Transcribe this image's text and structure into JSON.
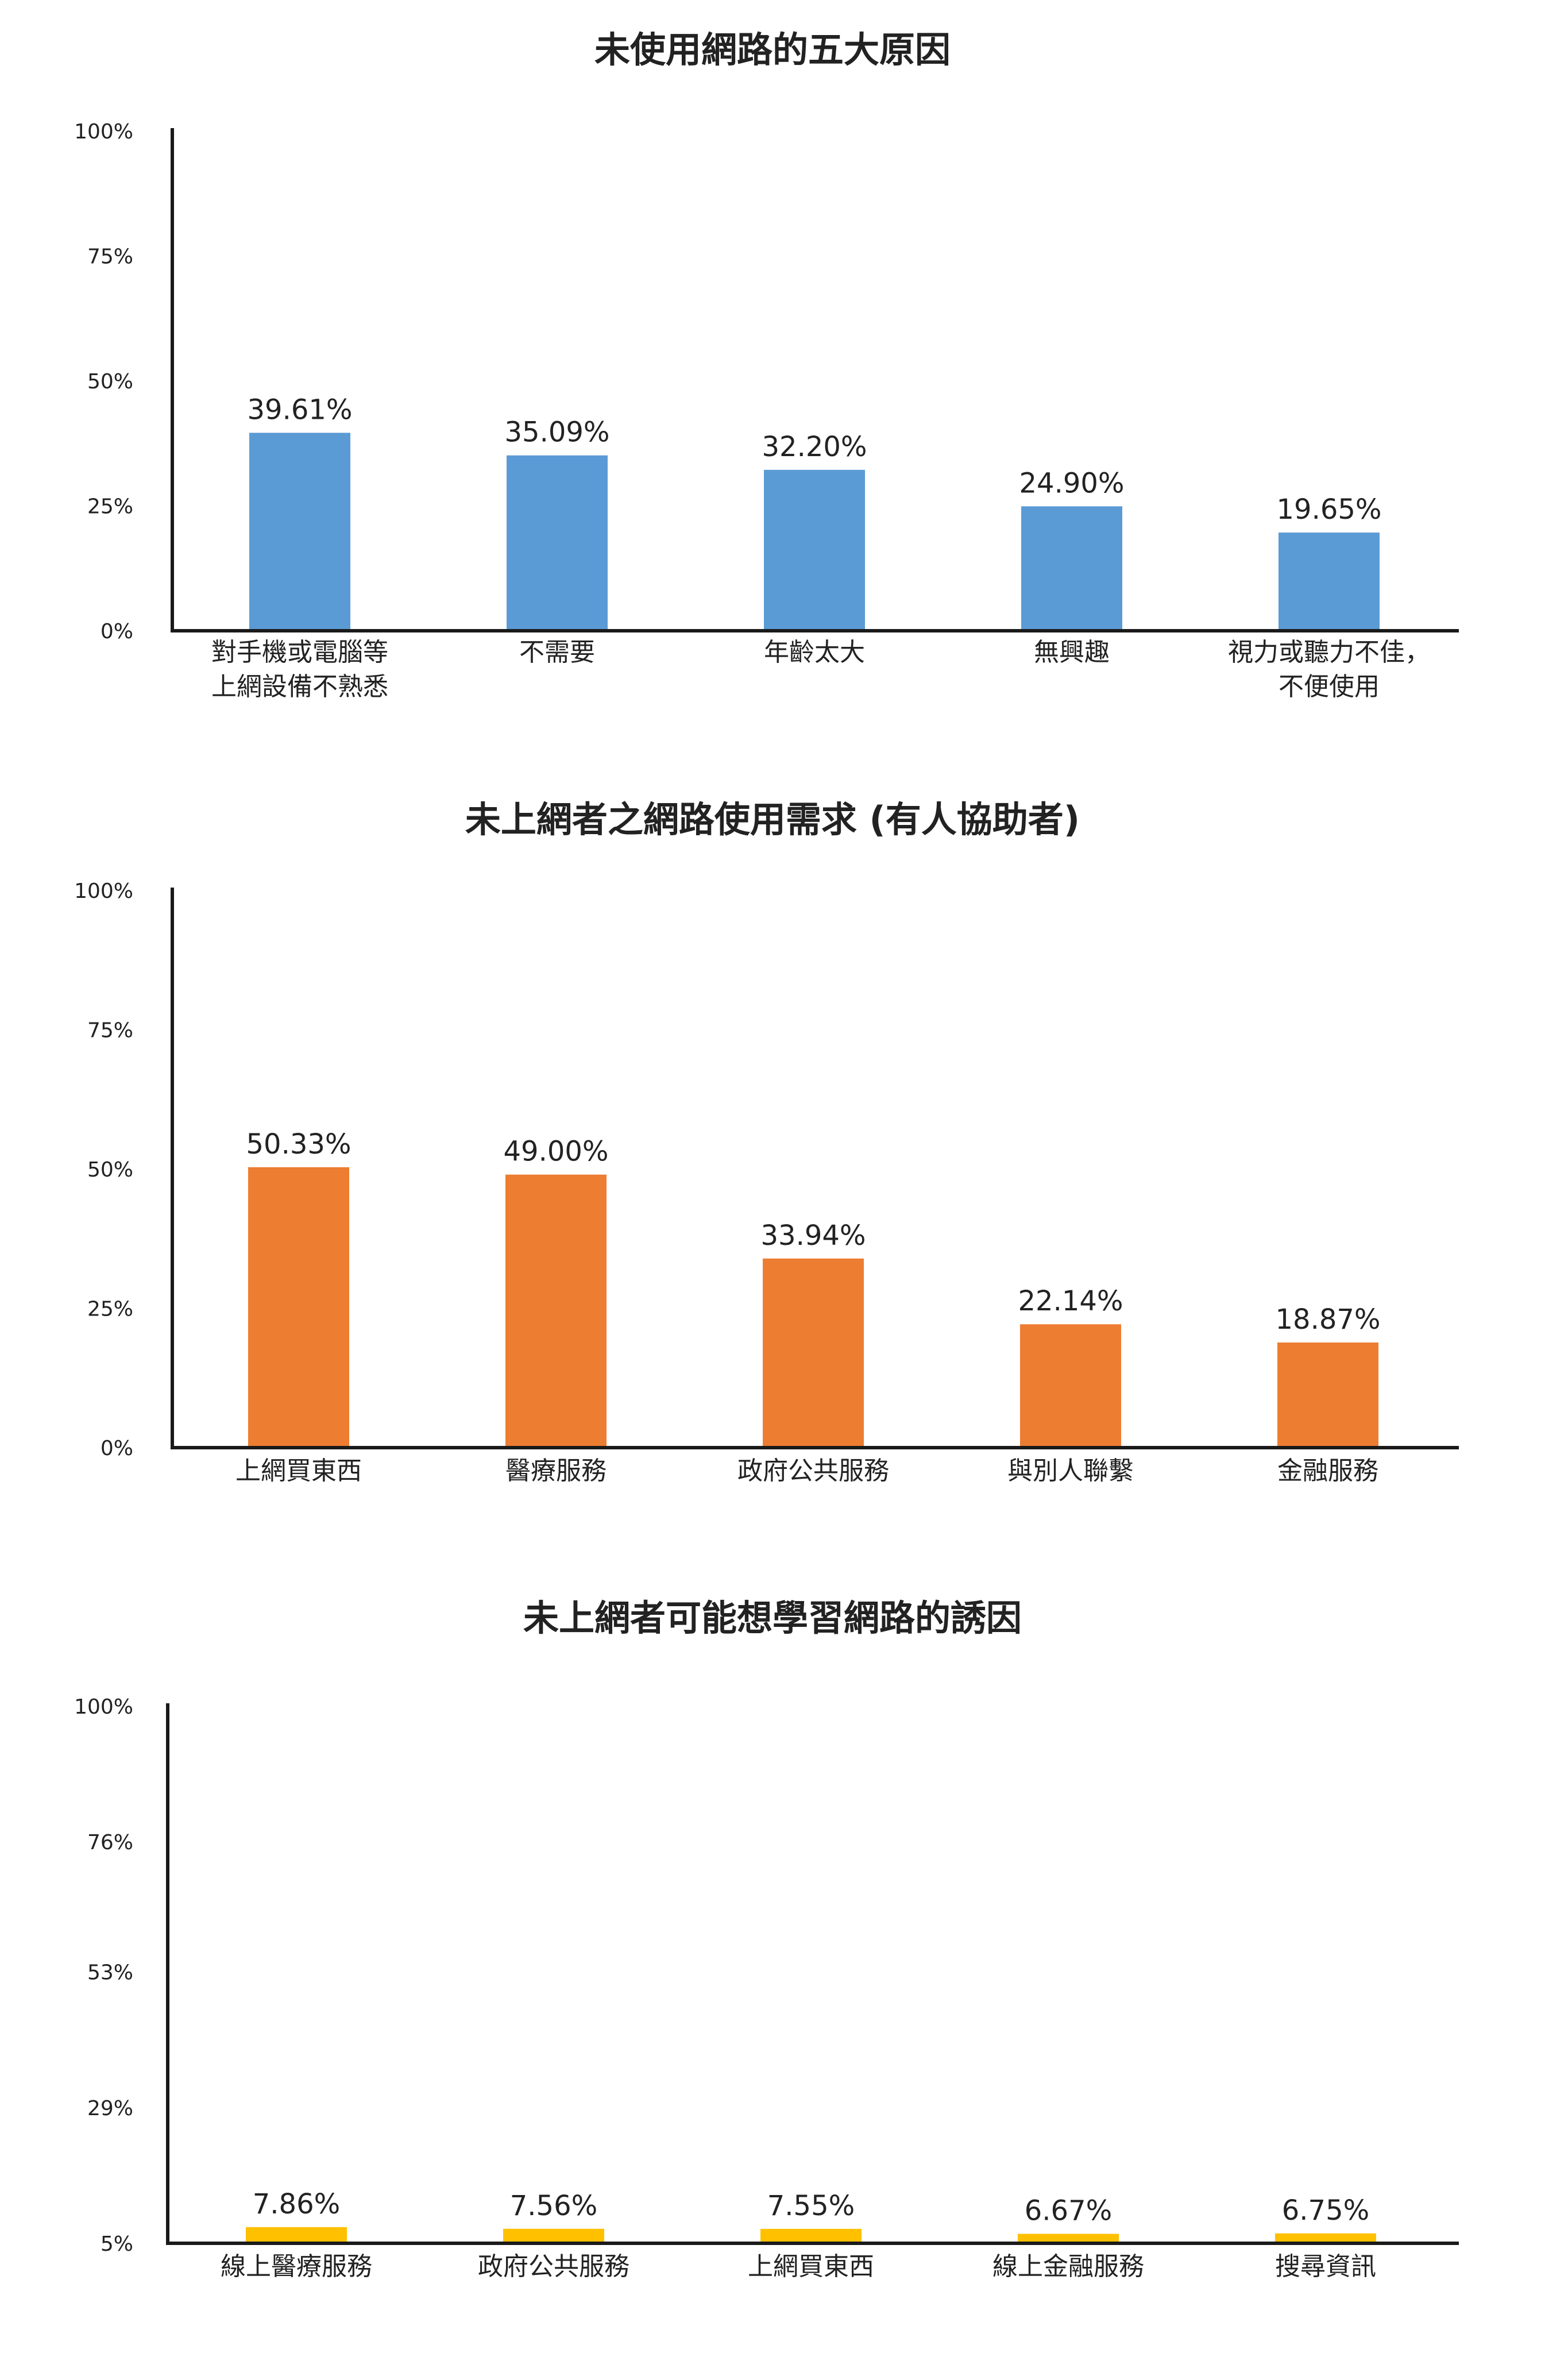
{
  "colors": {
    "chart1_bar": "#5B9BD5",
    "chart2_bar": "#ED7D31",
    "chart3_bar": "#FFC000",
    "axis": "#1a1a1a",
    "text": "#222222"
  },
  "chart_data": [
    {
      "type": "bar",
      "title": "未使用網路的五大原因",
      "categories": [
        [
          "對手機或電腦等",
          "上網設備不熟悉"
        ],
        [
          "不需要"
        ],
        [
          "年齡太大"
        ],
        [
          "無興趣"
        ],
        [
          "視力或聽力不佳，",
          "不便使用"
        ]
      ],
      "values": [
        39.61,
        35.09,
        32.2,
        24.9,
        19.65
      ],
      "value_labels": [
        "39.61%",
        "35.09%",
        "32.20%",
        "24.90%",
        "19.65%"
      ],
      "ylim": [
        0,
        100
      ],
      "yticks": [
        0,
        25,
        50,
        75,
        100
      ],
      "ytick_labels": [
        "0%",
        "25%",
        "50%",
        "75%",
        "100%"
      ],
      "grid": false,
      "legend": "none",
      "color": "#5B9BD5"
    },
    {
      "type": "bar",
      "title": "未上網者之網路使用需求 (有人協助者)",
      "categories": [
        [
          "上網買東西"
        ],
        [
          "醫療服務"
        ],
        [
          "政府公共服務"
        ],
        [
          "與別人聯繫"
        ],
        [
          "金融服務"
        ]
      ],
      "values": [
        50.33,
        49.0,
        33.94,
        22.14,
        18.87
      ],
      "value_labels": [
        "50.33%",
        "49.00%",
        "33.94%",
        "22.14%",
        "18.87%"
      ],
      "ylim": [
        0,
        100
      ],
      "yticks": [
        0,
        25,
        50,
        75,
        100
      ],
      "ytick_labels": [
        "0%",
        "25%",
        "50%",
        "75%",
        "100%"
      ],
      "grid": false,
      "legend": "none",
      "color": "#ED7D31"
    },
    {
      "type": "bar",
      "title": "未上網者可能想學習網路的誘因",
      "categories": [
        [
          "線上醫療服務"
        ],
        [
          "政府公共服務"
        ],
        [
          "上網買東西"
        ],
        [
          "線上金融服務"
        ],
        [
          "搜尋資訊"
        ]
      ],
      "values": [
        7.86,
        7.56,
        7.55,
        6.67,
        6.75
      ],
      "value_labels": [
        "7.86%",
        "7.56%",
        "7.55%",
        "6.67%",
        "6.75%"
      ],
      "ylim": [
        5,
        100
      ],
      "yticks": [
        5,
        29,
        53,
        76,
        100
      ],
      "ytick_labels": [
        "5%",
        "29%",
        "53%",
        "76%",
        "100%"
      ],
      "grid": false,
      "legend": "none",
      "color": "#FFC000"
    }
  ]
}
